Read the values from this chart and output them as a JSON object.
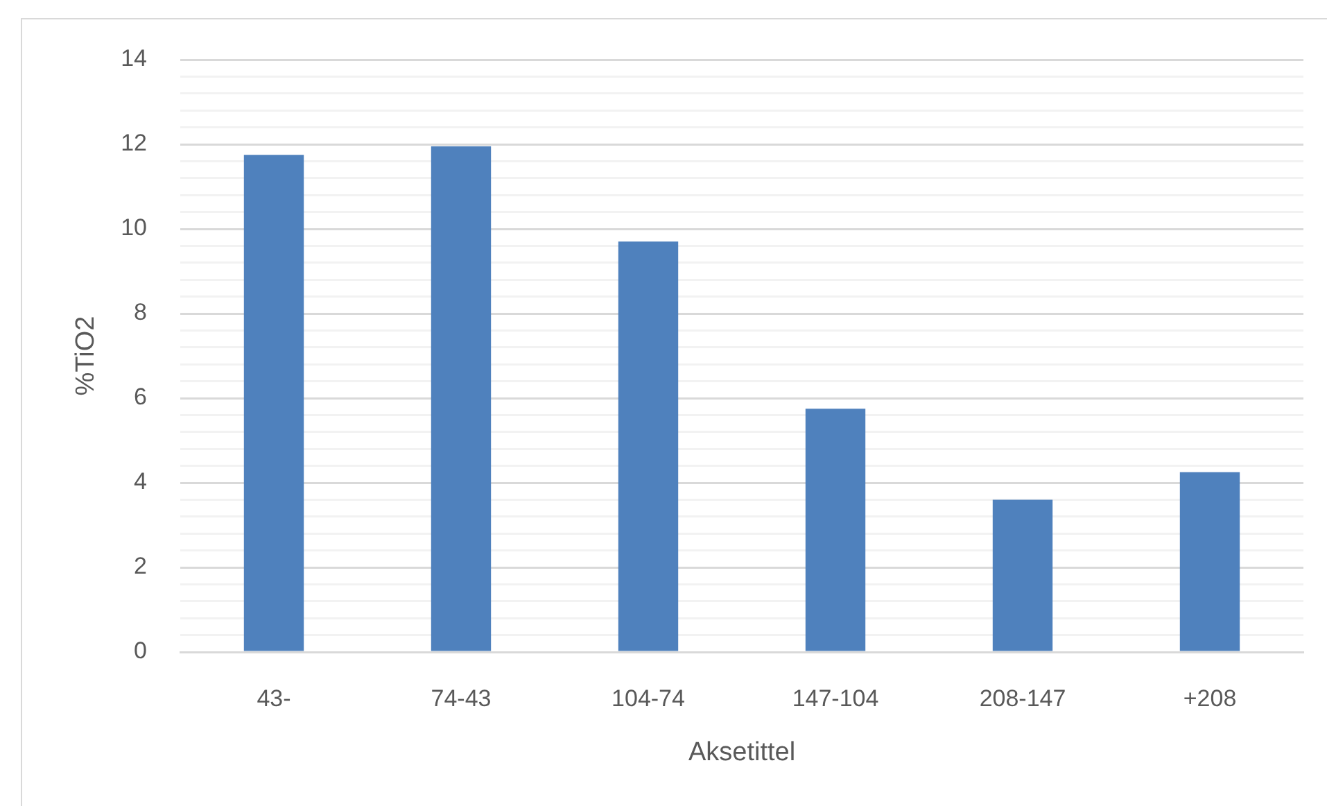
{
  "chart_data": {
    "type": "bar",
    "xlabel": "Aksetittel",
    "ylabel": "%TiO2",
    "categories": [
      "43-",
      "74-43",
      "104-74",
      "147-104",
      "208-147",
      "+208"
    ],
    "values": [
      11.75,
      11.95,
      9.7,
      5.75,
      3.6,
      4.25
    ],
    "color": "#4f81bd",
    "ylim": [
      0,
      14
    ],
    "yticks": [
      0,
      {
        "value": 0.4,
        "label": null
      },
      {
        "value": 0.8,
        "label": null
      },
      {
        "value": 1.2,
        "label": null
      },
      {
        "value": 1.6,
        "label": null
      },
      2,
      {
        "value": 2.4,
        "label": null
      },
      {
        "value": 2.8,
        "label": null
      },
      {
        "value": 3.2,
        "label": null
      },
      {
        "value": 3.6,
        "label": null
      },
      4,
      {
        "value": 4.4,
        "label": null
      },
      {
        "value": 4.8,
        "label": null
      },
      {
        "value": 5.2,
        "label": null
      },
      {
        "value": 5.6,
        "label": null
      },
      6,
      {
        "value": 6.4,
        "label": null
      },
      {
        "value": 6.8,
        "label": null
      },
      {
        "value": 7.2,
        "label": null
      },
      {
        "value": 7.6,
        "label": null
      },
      8,
      {
        "value": 8.4,
        "label": null
      },
      {
        "value": 8.8,
        "label": null
      },
      {
        "value": 9.2,
        "label": null
      },
      {
        "value": 9.6,
        "label": null
      },
      10,
      {
        "value": 10.4,
        "label": null
      },
      {
        "value": 10.8,
        "label": null
      },
      {
        "value": 11.2,
        "label": null
      },
      {
        "value": 11.6,
        "label": null
      },
      12,
      {
        "value": 12.4,
        "label": null
      },
      {
        "value": 12.8,
        "label": null
      },
      {
        "value": 13.2,
        "label": null
      },
      {
        "value": 13.6,
        "label": null
      },
      14
    ],
    "grid": "y"
  }
}
